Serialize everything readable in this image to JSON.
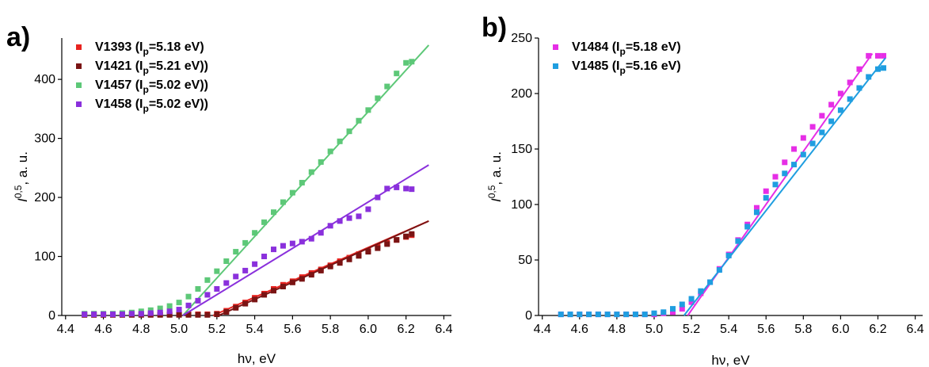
{
  "chart_data": [
    {
      "panel_label": "a)",
      "type": "scatter",
      "xlabel": "hν, eV",
      "ylabel_main": "I",
      "ylabel_sup": "0,5",
      "ylabel_rest": ", a. u.",
      "xlim": [
        4.38,
        6.44
      ],
      "ylim": [
        0,
        470
      ],
      "xticks": [
        4.4,
        4.6,
        4.8,
        5.0,
        5.2,
        5.4,
        5.6,
        5.8,
        6.0,
        6.2,
        6.4
      ],
      "yticks": [
        0,
        100,
        200,
        300,
        400
      ],
      "legend_position": "top-left",
      "series": [
        {
          "legend_main": "V1393 (I",
          "legend_sub": "p",
          "legend_end": "=5.18 eV)",
          "color": "#e8231f",
          "points": [
            [
              4.5,
              2
            ],
            [
              4.55,
              2
            ],
            [
              4.6,
              2
            ],
            [
              4.65,
              2
            ],
            [
              4.7,
              2
            ],
            [
              4.75,
              2
            ],
            [
              4.8,
              2
            ],
            [
              4.85,
              2
            ],
            [
              4.9,
              2
            ],
            [
              4.95,
              2
            ],
            [
              5.0,
              2
            ],
            [
              5.05,
              2
            ],
            [
              5.1,
              2
            ],
            [
              5.15,
              2
            ],
            [
              5.2,
              3
            ],
            [
              5.25,
              8
            ],
            [
              5.3,
              15
            ],
            [
              5.35,
              22
            ],
            [
              5.4,
              30
            ],
            [
              5.45,
              37
            ],
            [
              5.5,
              45
            ],
            [
              5.55,
              52
            ],
            [
              5.6,
              58
            ],
            [
              5.65,
              65
            ],
            [
              5.7,
              72
            ],
            [
              5.75,
              78
            ],
            [
              5.8,
              85
            ],
            [
              5.85,
              92
            ],
            [
              5.9,
              98
            ],
            [
              5.95,
              104
            ],
            [
              6.0,
              110
            ],
            [
              6.05,
              117
            ],
            [
              6.1,
              123
            ],
            [
              6.15,
              128
            ],
            [
              6.2,
              133
            ],
            [
              6.23,
              136
            ]
          ],
          "fit": [
            [
              5.18,
              0
            ],
            [
              6.32,
              160
            ]
          ]
        },
        {
          "legend_main": "V1421 (I",
          "legend_sub": "p",
          "legend_end": "=5.21 eV))",
          "color": "#7a1414",
          "points": [
            [
              4.5,
              1
            ],
            [
              4.55,
              1
            ],
            [
              4.6,
              1
            ],
            [
              4.65,
              1
            ],
            [
              4.7,
              1
            ],
            [
              4.75,
              1
            ],
            [
              4.8,
              1
            ],
            [
              4.85,
              1
            ],
            [
              4.9,
              1
            ],
            [
              4.95,
              1
            ],
            [
              5.0,
              1
            ],
            [
              5.05,
              1
            ],
            [
              5.1,
              1
            ],
            [
              5.15,
              1
            ],
            [
              5.2,
              2
            ],
            [
              5.25,
              6
            ],
            [
              5.3,
              13
            ],
            [
              5.35,
              20
            ],
            [
              5.4,
              27
            ],
            [
              5.45,
              35
            ],
            [
              5.5,
              42
            ],
            [
              5.55,
              49
            ],
            [
              5.6,
              56
            ],
            [
              5.65,
              62
            ],
            [
              5.7,
              69
            ],
            [
              5.75,
              76
            ],
            [
              5.8,
              83
            ],
            [
              5.85,
              89
            ],
            [
              5.9,
              95
            ],
            [
              5.95,
              101
            ],
            [
              6.0,
              108
            ],
            [
              6.05,
              114
            ],
            [
              6.1,
              121
            ],
            [
              6.15,
              128
            ],
            [
              6.2,
              134
            ],
            [
              6.23,
              138
            ]
          ],
          "fit": [
            [
              5.21,
              0
            ],
            [
              6.32,
              160
            ]
          ]
        },
        {
          "legend_main": "V1457 (I",
          "legend_sub": "p",
          "legend_end": "=5.02 eV))",
          "color": "#5dc878",
          "points": [
            [
              4.5,
              3
            ],
            [
              4.55,
              3
            ],
            [
              4.6,
              3
            ],
            [
              4.65,
              3
            ],
            [
              4.7,
              4
            ],
            [
              4.75,
              5
            ],
            [
              4.8,
              7
            ],
            [
              4.85,
              9
            ],
            [
              4.9,
              12
            ],
            [
              4.95,
              16
            ],
            [
              5.0,
              22
            ],
            [
              5.05,
              32
            ],
            [
              5.1,
              45
            ],
            [
              5.15,
              60
            ],
            [
              5.2,
              75
            ],
            [
              5.25,
              92
            ],
            [
              5.3,
              108
            ],
            [
              5.35,
              123
            ],
            [
              5.4,
              140
            ],
            [
              5.45,
              158
            ],
            [
              5.5,
              175
            ],
            [
              5.55,
              192
            ],
            [
              5.6,
              208
            ],
            [
              5.65,
              225
            ],
            [
              5.7,
              243
            ],
            [
              5.75,
              260
            ],
            [
              5.8,
              278
            ],
            [
              5.85,
              295
            ],
            [
              5.9,
              312
            ],
            [
              5.95,
              330
            ],
            [
              6.0,
              348
            ],
            [
              6.05,
              368
            ],
            [
              6.1,
              388
            ],
            [
              6.15,
              410
            ],
            [
              6.2,
              428
            ],
            [
              6.23,
              430
            ]
          ],
          "fit": [
            [
              5.02,
              0
            ],
            [
              6.32,
              458
            ]
          ]
        },
        {
          "legend_main": "V1458  (I",
          "legend_sub": "p",
          "legend_end": "=5.02 eV))",
          "color": "#8a30dc",
          "points": [
            [
              4.5,
              2
            ],
            [
              4.55,
              2
            ],
            [
              4.6,
              2
            ],
            [
              4.65,
              2
            ],
            [
              4.7,
              2
            ],
            [
              4.75,
              3
            ],
            [
              4.8,
              3
            ],
            [
              4.85,
              4
            ],
            [
              4.9,
              5
            ],
            [
              4.95,
              7
            ],
            [
              5.0,
              10
            ],
            [
              5.05,
              17
            ],
            [
              5.1,
              25
            ],
            [
              5.15,
              35
            ],
            [
              5.2,
              45
            ],
            [
              5.25,
              55
            ],
            [
              5.3,
              66
            ],
            [
              5.35,
              76
            ],
            [
              5.4,
              87
            ],
            [
              5.45,
              100
            ],
            [
              5.5,
              112
            ],
            [
              5.55,
              118
            ],
            [
              5.6,
              122
            ],
            [
              5.65,
              125
            ],
            [
              5.7,
              130
            ],
            [
              5.75,
              140
            ],
            [
              5.8,
              152
            ],
            [
              5.85,
              160
            ],
            [
              5.9,
              165
            ],
            [
              5.95,
              168
            ],
            [
              6.0,
              180
            ],
            [
              6.05,
              200
            ],
            [
              6.1,
              215
            ],
            [
              6.15,
              217
            ],
            [
              6.2,
              215
            ],
            [
              6.23,
              214
            ]
          ],
          "fit": [
            [
              5.02,
              0
            ],
            [
              6.32,
              255
            ]
          ]
        }
      ]
    },
    {
      "panel_label": "b)",
      "type": "scatter",
      "xlabel": "hν, eV",
      "ylabel_main": "I",
      "ylabel_sup": "0,5",
      "ylabel_rest": ", a. u.",
      "xlim": [
        4.38,
        6.44
      ],
      "ylim": [
        0,
        250
      ],
      "xticks": [
        4.4,
        4.6,
        4.8,
        5.0,
        5.2,
        5.4,
        5.6,
        5.8,
        6.0,
        6.2,
        6.4
      ],
      "yticks": [
        0,
        50,
        100,
        150,
        200,
        250
      ],
      "legend_position": "top-left",
      "series": [
        {
          "legend_main": "V1484 (I",
          "legend_sub": "p",
          "legend_end": "=5.18 eV)",
          "color": "#e62ee6",
          "points": [
            [
              4.5,
              1
            ],
            [
              4.55,
              1
            ],
            [
              4.6,
              1
            ],
            [
              4.65,
              1
            ],
            [
              4.7,
              1
            ],
            [
              4.75,
              1
            ],
            [
              4.8,
              1
            ],
            [
              4.85,
              1
            ],
            [
              4.9,
              1
            ],
            [
              4.95,
              1
            ],
            [
              5.0,
              1
            ],
            [
              5.05,
              2
            ],
            [
              5.1,
              3
            ],
            [
              5.15,
              6
            ],
            [
              5.2,
              12
            ],
            [
              5.25,
              20
            ],
            [
              5.3,
              30
            ],
            [
              5.35,
              42
            ],
            [
              5.4,
              55
            ],
            [
              5.45,
              68
            ],
            [
              5.5,
              82
            ],
            [
              5.55,
              97
            ],
            [
              5.6,
              112
            ],
            [
              5.65,
              125
            ],
            [
              5.7,
              138
            ],
            [
              5.75,
              150
            ],
            [
              5.8,
              160
            ],
            [
              5.85,
              170
            ],
            [
              5.9,
              180
            ],
            [
              5.95,
              190
            ],
            [
              6.0,
              200
            ],
            [
              6.05,
              210
            ],
            [
              6.1,
              222
            ],
            [
              6.15,
              234
            ],
            [
              6.2,
              234
            ],
            [
              6.23,
              234
            ]
          ],
          "fit": [
            [
              5.18,
              0
            ],
            [
              6.17,
              236
            ]
          ]
        },
        {
          "legend_main": "V1485 (I",
          "legend_sub": "p",
          "legend_end": "=5.16 eV)",
          "color": "#1f9ee0",
          "points": [
            [
              4.5,
              1
            ],
            [
              4.55,
              1
            ],
            [
              4.6,
              1
            ],
            [
              4.65,
              1
            ],
            [
              4.7,
              1
            ],
            [
              4.75,
              1
            ],
            [
              4.8,
              1
            ],
            [
              4.85,
              1
            ],
            [
              4.9,
              1
            ],
            [
              4.95,
              1
            ],
            [
              5.0,
              2
            ],
            [
              5.05,
              3
            ],
            [
              5.1,
              6
            ],
            [
              5.15,
              10
            ],
            [
              5.2,
              15
            ],
            [
              5.25,
              22
            ],
            [
              5.3,
              30
            ],
            [
              5.35,
              41
            ],
            [
              5.4,
              54
            ],
            [
              5.45,
              67
            ],
            [
              5.5,
              80
            ],
            [
              5.55,
              93
            ],
            [
              5.6,
              106
            ],
            [
              5.65,
              118
            ],
            [
              5.7,
              128
            ],
            [
              5.75,
              136
            ],
            [
              5.8,
              145
            ],
            [
              5.85,
              155
            ],
            [
              5.9,
              165
            ],
            [
              5.95,
              175
            ],
            [
              6.0,
              185
            ],
            [
              6.05,
              195
            ],
            [
              6.1,
              205
            ],
            [
              6.15,
              215
            ],
            [
              6.2,
              222
            ],
            [
              6.23,
              223
            ]
          ],
          "fit": [
            [
              5.16,
              0
            ],
            [
              6.24,
              232
            ]
          ]
        }
      ]
    }
  ]
}
